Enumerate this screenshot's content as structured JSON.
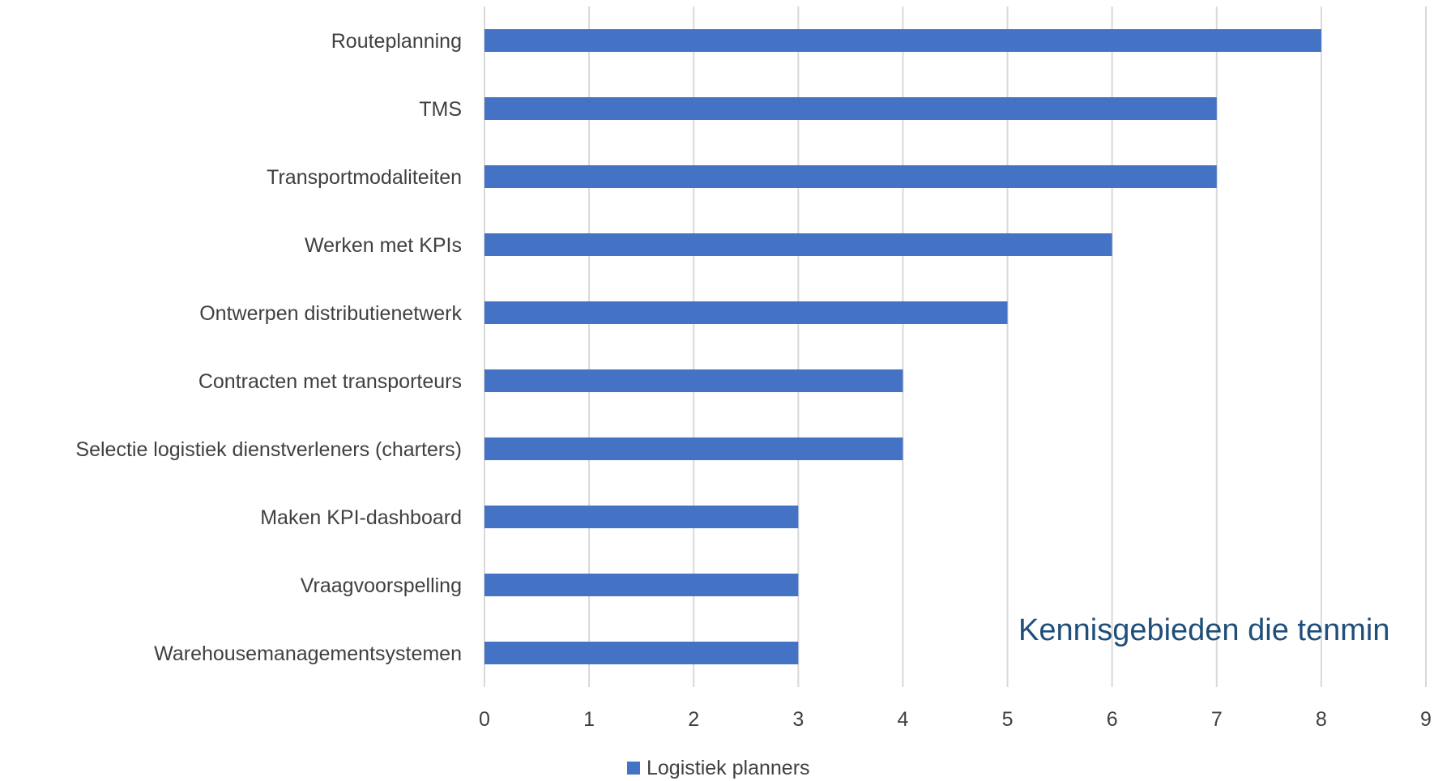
{
  "chart_data": {
    "type": "bar",
    "orientation": "horizontal",
    "title": "",
    "overlay_text": "Kennisgebieden die tenmin",
    "categories": [
      "Routeplanning",
      "TMS",
      "Transportmodaliteiten",
      "Werken met KPIs",
      "Ontwerpen distributienetwerk",
      "Contracten met transporteurs",
      "Selectie logistiek dienstverleners (charters)",
      "Maken KPI-dashboard",
      "Vraagvoorspelling",
      "Warehousemanagementsystemen"
    ],
    "series": [
      {
        "name": "Logistiek planners",
        "values": [
          8,
          7,
          7,
          6,
          5,
          4,
          4,
          3,
          3,
          3
        ]
      }
    ],
    "xlim": [
      0,
      9
    ],
    "xticks": [
      "0",
      "1",
      "2",
      "3",
      "4",
      "5",
      "6",
      "7",
      "8",
      "9"
    ],
    "grid": "vertical",
    "legend": "bottom-center",
    "colors": {
      "bar": "#4472c4",
      "grid": "#d9d9d9",
      "text": "#404040",
      "overlay": "#1f4e79"
    }
  }
}
